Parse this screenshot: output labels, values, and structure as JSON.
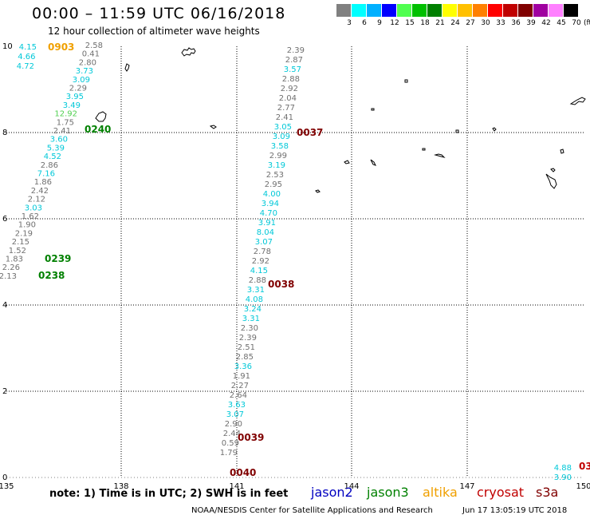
{
  "title": "00:00 – 11:59 UTC 06/16/2018",
  "subtitle": "12 hour collection of altimeter wave heights",
  "scale": {
    "colors": [
      "#808080",
      "#00ffff",
      "#00b0ff",
      "#0000ff",
      "#50ff50",
      "#00c000",
      "#008000",
      "#ffff00",
      "#ffc000",
      "#ff8000",
      "#ff0000",
      "#c00000",
      "#800000",
      "#a000a0",
      "#ff80ff",
      "#000000"
    ],
    "labels": [
      "3",
      "6",
      "9",
      "12",
      "15",
      "18",
      "21",
      "24",
      "27",
      "30",
      "33",
      "36",
      "39",
      "42",
      "45",
      "70"
    ],
    "unit": "(ft)"
  },
  "axes": {
    "x_ticks": [
      "135",
      "138",
      "141",
      "144",
      "147",
      "150"
    ],
    "y_ticks": [
      "0",
      "2",
      "4",
      "6",
      "8",
      "10"
    ]
  },
  "passes": [
    {
      "time": "0903",
      "color": "#f0a000"
    },
    {
      "time": "0240",
      "color": "#008000"
    },
    {
      "time": "0239",
      "color": "#008000"
    },
    {
      "time": "0238",
      "color": "#008000"
    },
    {
      "time": "0037",
      "color": "#800000"
    },
    {
      "time": "0038",
      "color": "#800000"
    },
    {
      "time": "0039",
      "color": "#800000"
    },
    {
      "time": "0040",
      "color": "#800000"
    },
    {
      "time": "03",
      "color": "#c00000"
    }
  ],
  "tracks": {
    "left_orange": [
      {
        "v": "4.15",
        "c": "#00c8d8"
      },
      {
        "v": "4.66",
        "c": "#00c8d8"
      },
      {
        "v": "4.72",
        "c": "#00c8d8"
      }
    ],
    "left_grey": [
      {
        "v": "2.58",
        "c": "#707070"
      },
      {
        "v": "0.41",
        "c": "#707070"
      },
      {
        "v": "2.80",
        "c": "#707070"
      },
      {
        "v": "3.73",
        "c": "#00c8d8"
      },
      {
        "v": "3.09",
        "c": "#00c8d8"
      },
      {
        "v": "2.29",
        "c": "#707070"
      },
      {
        "v": "3.95",
        "c": "#00c8d8"
      },
      {
        "v": "3.49",
        "c": "#00c8d8"
      },
      {
        "v": "12.92",
        "c": "#50d050"
      },
      {
        "v": "1.75",
        "c": "#707070"
      },
      {
        "v": "2.41",
        "c": "#707070"
      },
      {
        "v": "3.60",
        "c": "#00c8d8"
      },
      {
        "v": "5.39",
        "c": "#00c8d8"
      },
      {
        "v": "4.52",
        "c": "#00c8d8"
      },
      {
        "v": "2.86",
        "c": "#707070"
      },
      {
        "v": "7.16",
        "c": "#00c8d8"
      },
      {
        "v": "1.86",
        "c": "#707070"
      },
      {
        "v": "2.42",
        "c": "#707070"
      },
      {
        "v": "2.12",
        "c": "#707070"
      },
      {
        "v": "3.03",
        "c": "#00c8d8"
      },
      {
        "v": "1.62",
        "c": "#707070"
      },
      {
        "v": "1.90",
        "c": "#707070"
      },
      {
        "v": "2.19",
        "c": "#707070"
      },
      {
        "v": "2.15",
        "c": "#707070"
      },
      {
        "v": "1.52",
        "c": "#707070"
      },
      {
        "v": "1.83",
        "c": "#707070"
      },
      {
        "v": "2.26",
        "c": "#707070"
      },
      {
        "v": "2.13",
        "c": "#707070"
      }
    ],
    "center": [
      {
        "v": "2.39",
        "c": "#707070"
      },
      {
        "v": "2.87",
        "c": "#707070"
      },
      {
        "v": "3.57",
        "c": "#00c8d8"
      },
      {
        "v": "2.88",
        "c": "#707070"
      },
      {
        "v": "2.92",
        "c": "#707070"
      },
      {
        "v": "2.04",
        "c": "#707070"
      },
      {
        "v": "2.77",
        "c": "#707070"
      },
      {
        "v": "2.41",
        "c": "#707070"
      },
      {
        "v": "3.05",
        "c": "#00c8d8"
      },
      {
        "v": "3.09",
        "c": "#00c8d8"
      },
      {
        "v": "3.58",
        "c": "#00c8d8"
      },
      {
        "v": "2.99",
        "c": "#707070"
      },
      {
        "v": "3.19",
        "c": "#00c8d8"
      },
      {
        "v": "2.53",
        "c": "#707070"
      },
      {
        "v": "2.95",
        "c": "#707070"
      },
      {
        "v": "4.00",
        "c": "#00c8d8"
      },
      {
        "v": "3.94",
        "c": "#00c8d8"
      },
      {
        "v": "4.70",
        "c": "#00c8d8"
      },
      {
        "v": "3.91",
        "c": "#00c8d8"
      },
      {
        "v": "8.04",
        "c": "#00c8d8"
      },
      {
        "v": "3.07",
        "c": "#00c8d8"
      },
      {
        "v": "2.78",
        "c": "#707070"
      },
      {
        "v": "2.92",
        "c": "#707070"
      },
      {
        "v": "4.15",
        "c": "#00c8d8"
      },
      {
        "v": "2.88",
        "c": "#707070"
      },
      {
        "v": "3.31",
        "c": "#00c8d8"
      },
      {
        "v": "4.08",
        "c": "#00c8d8"
      },
      {
        "v": "3.24",
        "c": "#00c8d8"
      },
      {
        "v": "3.31",
        "c": "#00c8d8"
      },
      {
        "v": "2.30",
        "c": "#707070"
      },
      {
        "v": "2.39",
        "c": "#707070"
      },
      {
        "v": "2.51",
        "c": "#707070"
      },
      {
        "v": "2.85",
        "c": "#707070"
      },
      {
        "v": "3.36",
        "c": "#00c8d8"
      },
      {
        "v": "1.91",
        "c": "#707070"
      },
      {
        "v": "2.27",
        "c": "#707070"
      },
      {
        "v": "2.64",
        "c": "#707070"
      },
      {
        "v": "3.63",
        "c": "#00c8d8"
      },
      {
        "v": "3.07",
        "c": "#00c8d8"
      },
      {
        "v": "2.90",
        "c": "#707070"
      },
      {
        "v": "2.44",
        "c": "#707070"
      },
      {
        "v": "0.59",
        "c": "#707070"
      },
      {
        "v": "1.79",
        "c": "#707070"
      }
    ],
    "right": [
      {
        "v": "4.88",
        "c": "#00c8d8"
      },
      {
        "v": "3.90",
        "c": "#00c8d8"
      }
    ]
  },
  "note": "note: 1) Time is in UTC; 2) SWH is in feet",
  "legend": [
    {
      "name": "jason2",
      "color": "#0000c0"
    },
    {
      "name": "jason3",
      "color": "#008000"
    },
    {
      "name": "altika",
      "color": "#f0a000"
    },
    {
      "name": "cryosat",
      "color": "#c00000"
    },
    {
      "name": "s3a",
      "color": "#800000"
    }
  ],
  "credit": "NOAA/NESDIS Center for Satellite Applications and Research",
  "generated": "Jun 17 13:05:19 UTC 2018"
}
